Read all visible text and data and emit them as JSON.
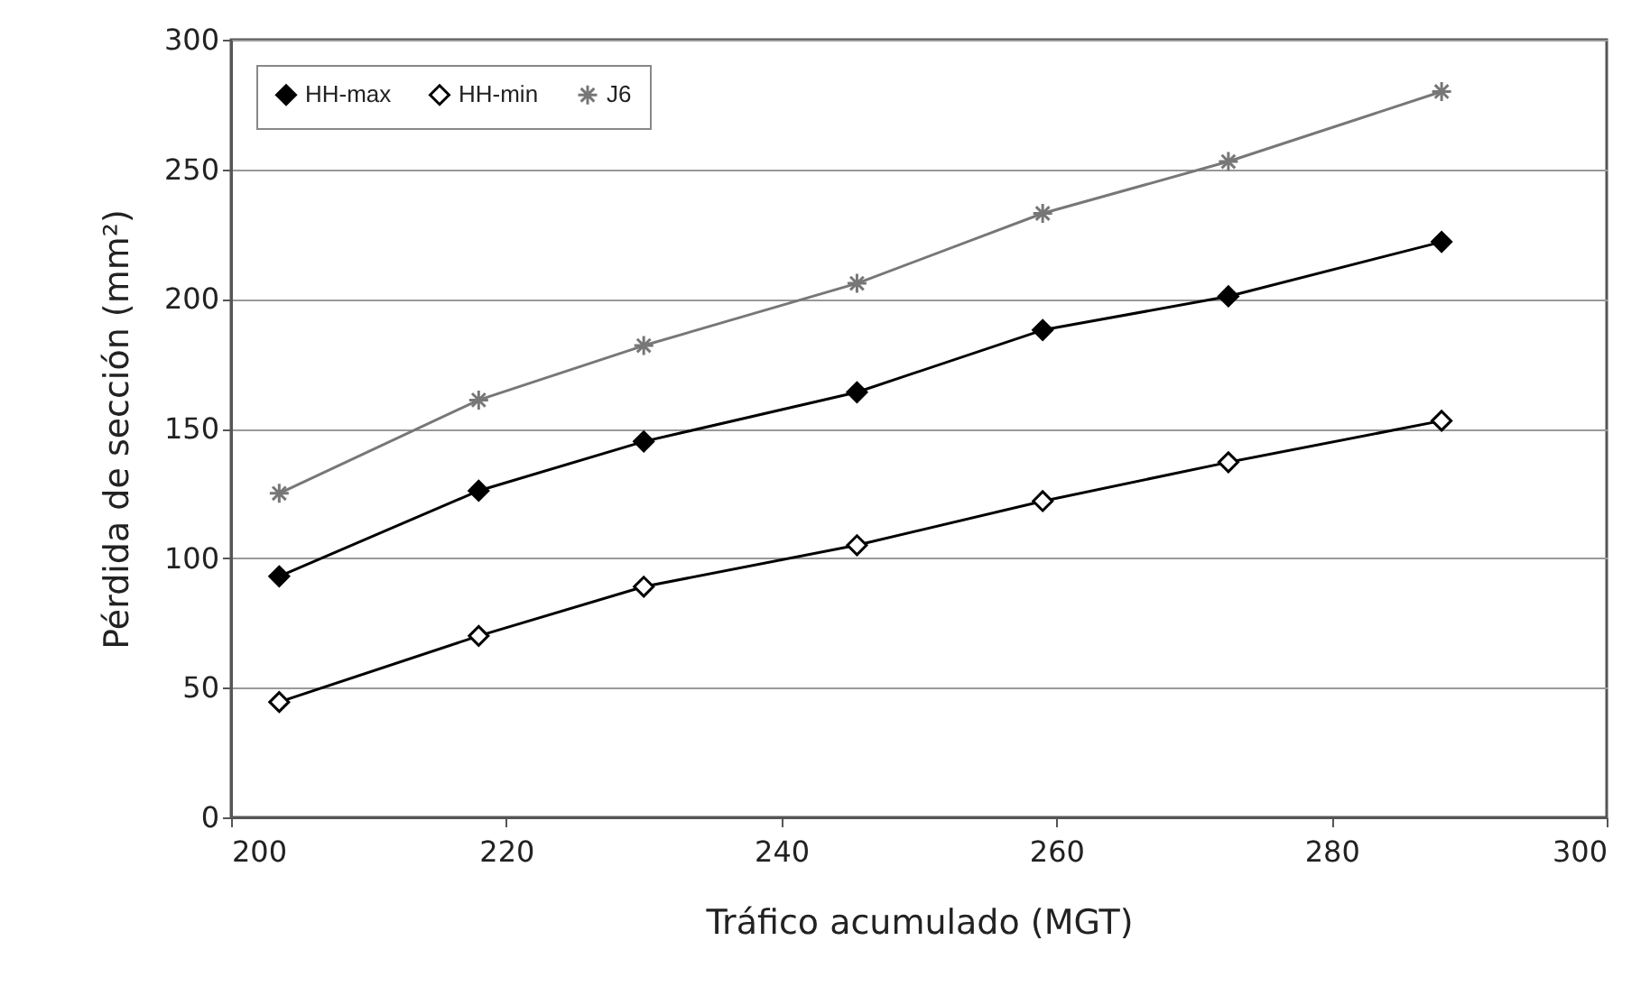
{
  "chart_data": {
    "type": "line",
    "xlabel": "Tráfico acumulado (MGT)",
    "ylabel": "Pérdida de sección (mm²)",
    "xlim": [
      200,
      300
    ],
    "xticks": [
      200,
      220,
      240,
      260,
      280,
      300
    ],
    "ylim": [
      0,
      300
    ],
    "yticks": [
      0,
      50,
      100,
      150,
      200,
      250,
      300
    ],
    "x": [
      203.5,
      218,
      230,
      245.5,
      259,
      272.5,
      288
    ],
    "series": [
      {
        "name": "HH-max",
        "color": "#000000",
        "marker": "diamond",
        "values": [
          93,
          126,
          145,
          164,
          188,
          201,
          222
        ]
      },
      {
        "name": "HH-min",
        "color": "#000000",
        "marker": "diamond",
        "values": [
          44.5,
          70,
          89,
          105,
          122,
          137,
          153
        ]
      },
      {
        "name": "J6",
        "color": "#777777",
        "marker": "cross",
        "values": [
          125,
          161,
          182,
          206,
          233,
          253,
          280
        ]
      }
    ],
    "grid": "y",
    "legend": "top left",
    "line_style": "solid"
  }
}
